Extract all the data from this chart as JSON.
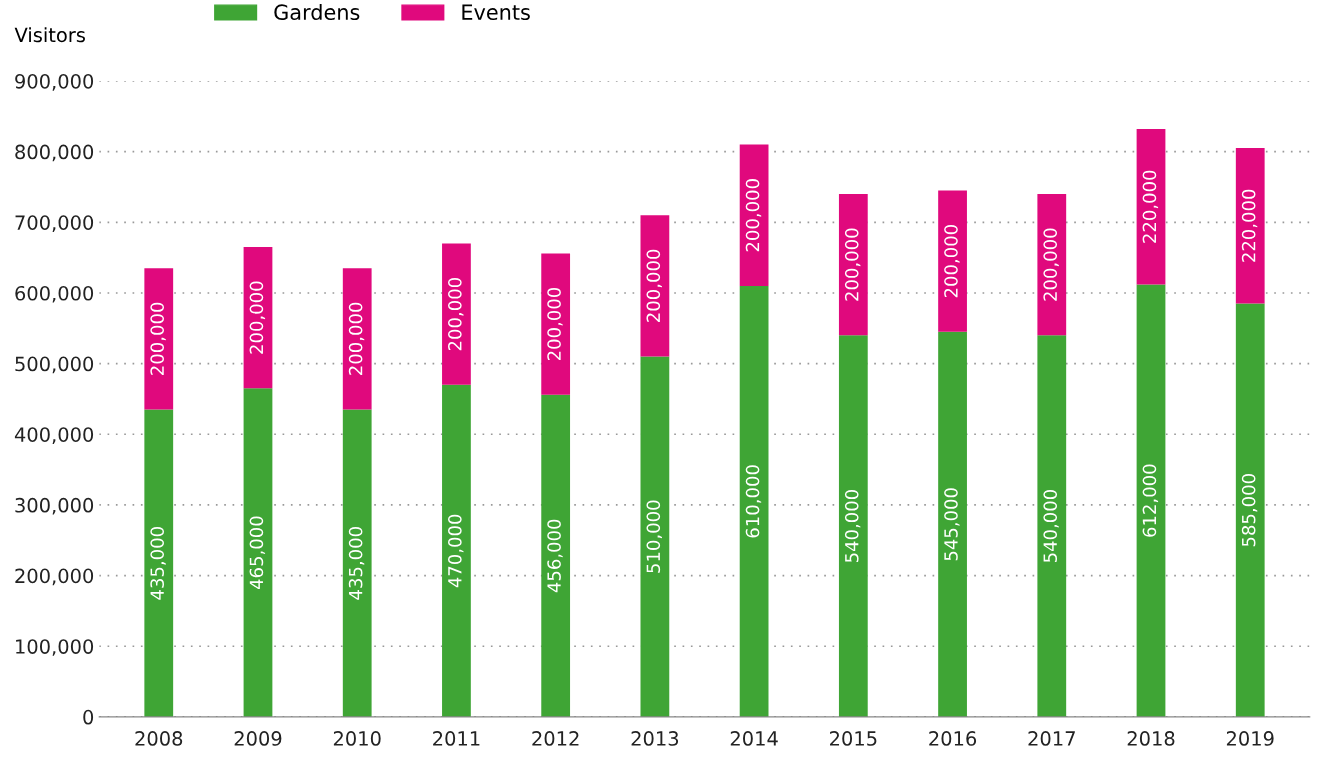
{
  "chart_data": {
    "type": "bar",
    "stacked": true,
    "ylabel": "Visitors",
    "categories": [
      "2008",
      "2009",
      "2010",
      "2011",
      "2012",
      "2013",
      "2014",
      "2015",
      "2016",
      "2017",
      "2018",
      "2019"
    ],
    "series": [
      {
        "name": "Gardens",
        "color": "#3fa535",
        "values": [
          435000,
          465000,
          435000,
          470000,
          456000,
          510000,
          610000,
          540000,
          545000,
          540000,
          612000,
          585000
        ],
        "value_labels": [
          "435,000",
          "465,000",
          "435,000",
          "470,000",
          "456,000",
          "510,000",
          "610,000",
          "540,000",
          "545,000",
          "540,000",
          "612,000",
          "585,000"
        ]
      },
      {
        "name": "Events",
        "color": "#e0097d",
        "values": [
          200000,
          200000,
          200000,
          200000,
          200000,
          200000,
          200000,
          200000,
          200000,
          200000,
          220000,
          220000
        ],
        "value_labels": [
          "200,000",
          "200,000",
          "200,000",
          "200,000",
          "200,000",
          "200,000",
          "200,000",
          "200,000",
          "200,000",
          "200,000",
          "220,000",
          "220,000"
        ]
      }
    ],
    "ylim": [
      0,
      900000
    ],
    "yticks": [
      0,
      {
        "value": 100000,
        "label": "100,000"
      },
      {
        "value": 200000,
        "label": "200,000"
      },
      {
        "value": 300000,
        "label": "300,000"
      },
      {
        "value": 400000,
        "label": "400,000"
      },
      {
        "value": 500000,
        "label": "500,000"
      },
      {
        "value": 600000,
        "label": "600,000"
      },
      {
        "value": 700000,
        "label": "700,000"
      },
      {
        "value": 800000,
        "label": "800,000"
      },
      {
        "value": 900000,
        "label": "900,000"
      }
    ],
    "grid": "y",
    "legend": "top left"
  }
}
